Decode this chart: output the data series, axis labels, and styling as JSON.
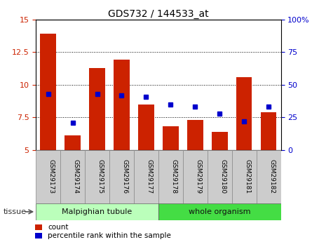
{
  "title": "GDS732 / 144533_at",
  "samples": [
    "GSM29173",
    "GSM29174",
    "GSM29175",
    "GSM29176",
    "GSM29177",
    "GSM29178",
    "GSM29179",
    "GSM29180",
    "GSM29181",
    "GSM29182"
  ],
  "counts": [
    13.9,
    6.1,
    11.3,
    11.9,
    8.5,
    6.8,
    7.3,
    6.4,
    10.6,
    7.9
  ],
  "percentiles": [
    43,
    21,
    43,
    42,
    41,
    35,
    33,
    28,
    22,
    33
  ],
  "ylim_left": [
    5,
    15
  ],
  "ylim_right": [
    0,
    100
  ],
  "yticks_left": [
    5,
    7.5,
    10,
    12.5,
    15
  ],
  "ytick_labels_left": [
    "5",
    "7.5",
    "10",
    "12.5",
    "15"
  ],
  "yticks_right": [
    0,
    25,
    50,
    75,
    100
  ],
  "ytick_labels_right": [
    "0",
    "25",
    "50",
    "75",
    "100%"
  ],
  "tissue_groups": [
    {
      "label": "Malpighian tubule",
      "start": 0,
      "end": 5,
      "color": "#bbffbb"
    },
    {
      "label": "whole organism",
      "start": 5,
      "end": 10,
      "color": "#44dd44"
    }
  ],
  "bar_color": "#cc2200",
  "dot_color": "#0000cc",
  "bar_width": 0.65,
  "grid_color": "#000000",
  "tick_label_color_left": "#cc2200",
  "tick_label_color_right": "#0000cc",
  "legend_count_label": "count",
  "legend_pct_label": "percentile rank within the sample",
  "tissue_label": "tissue",
  "tissue_label_color": "#333333",
  "xticklabel_bg": "#cccccc",
  "xticklabel_border": "#888888"
}
